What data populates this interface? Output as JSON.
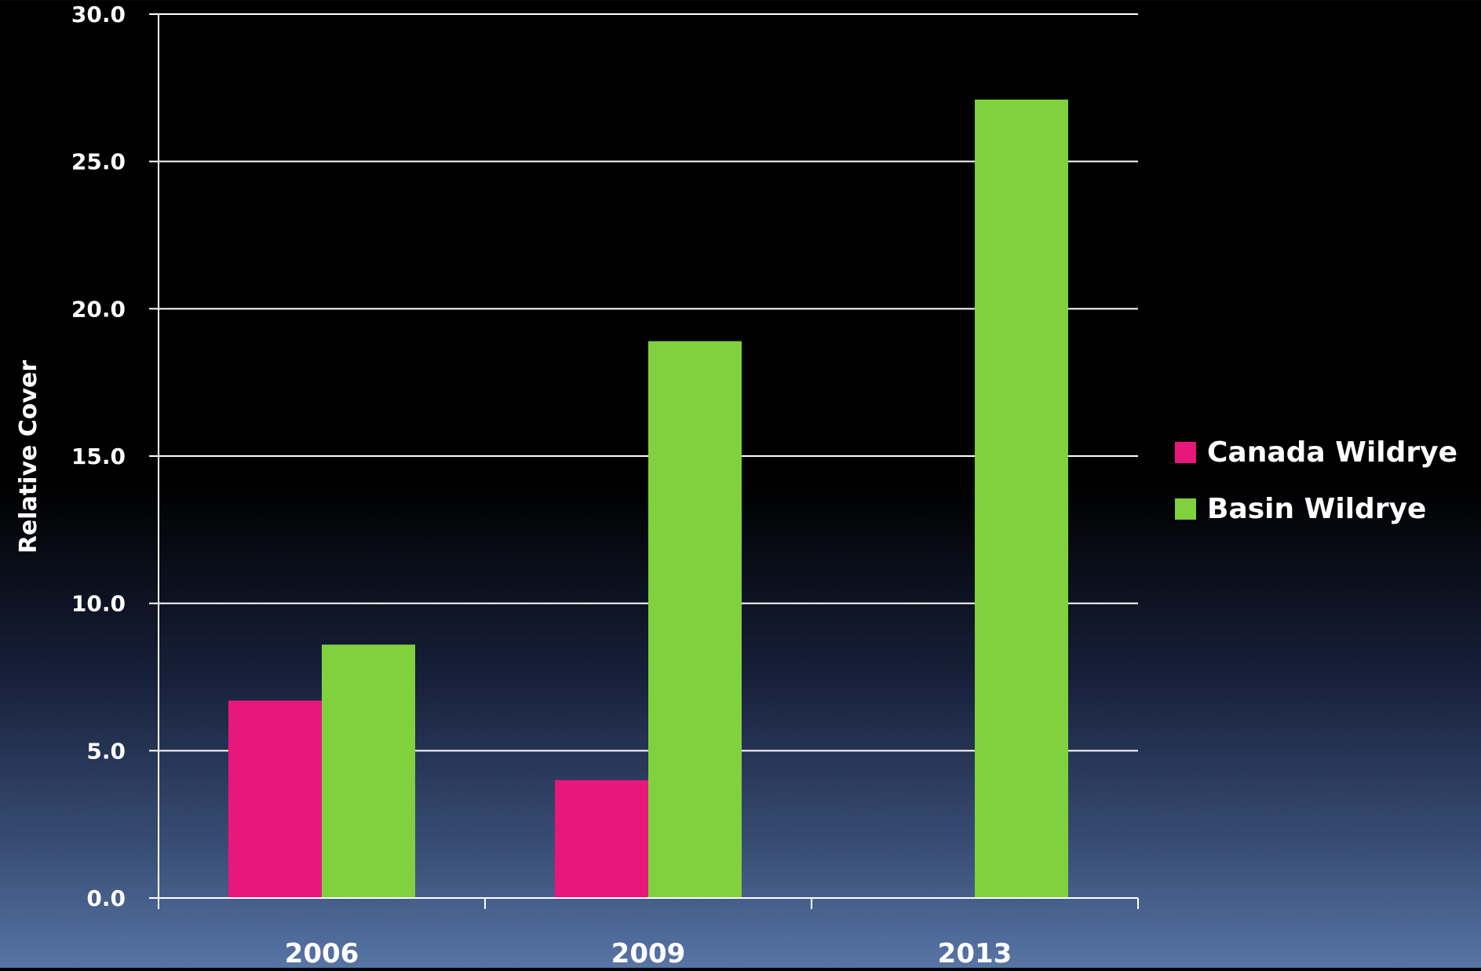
{
  "chart_data": {
    "type": "bar",
    "categories": [
      "2006",
      "2009",
      "2013"
    ],
    "series": [
      {
        "name": "Canada Wildrye",
        "values": [
          6.7,
          4.0,
          0.0
        ],
        "color": "#e8177c"
      },
      {
        "name": "Basin Wildrye",
        "values": [
          8.6,
          18.9,
          27.1
        ],
        "color": "#80d13d"
      }
    ],
    "ylabel": "Relative Cover",
    "xlabel": "",
    "title": "",
    "ylim": [
      0,
      30
    ],
    "yticks": [
      "0.0",
      "5.0",
      "10.0",
      "15.0",
      "20.0",
      "25.0",
      "30.0"
    ],
    "grid": true,
    "legend_position": "right",
    "background": "dark gradient",
    "axis_color": "#ffffff"
  }
}
